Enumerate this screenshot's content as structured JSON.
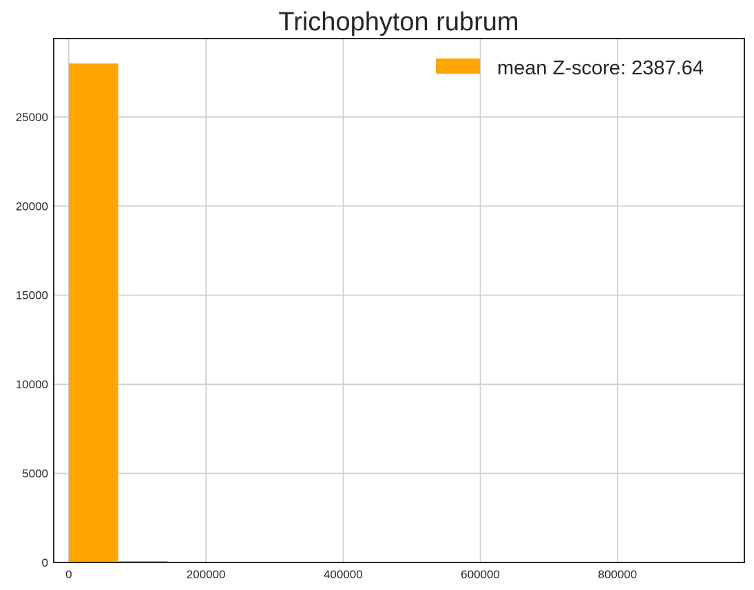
{
  "chart_data": {
    "type": "bar",
    "title": "Trichophyton rubrum",
    "xlabel": "",
    "ylabel": "",
    "xlim": [
      -22000,
      985000
    ],
    "ylim": [
      0,
      29400
    ],
    "grid": true,
    "legend_position": "top-right",
    "x_ticks": [
      0,
      200000,
      400000,
      600000,
      800000
    ],
    "y_ticks": [
      0,
      5000,
      10000,
      15000,
      20000,
      25000
    ],
    "bins": [
      {
        "x0": 0,
        "x1": 72000,
        "count": 28000
      },
      {
        "x0": 72000,
        "x1": 144000,
        "count": 80
      },
      {
        "x0": 144000,
        "x1": 216000,
        "count": 10
      },
      {
        "x0": 216000,
        "x1": 288000,
        "count": 4
      },
      {
        "x0": 288000,
        "x1": 360000,
        "count": 3
      },
      {
        "x0": 360000,
        "x1": 432000,
        "count": 3
      },
      {
        "x0": 432000,
        "x1": 504000,
        "count": 1
      },
      {
        "x0": 504000,
        "x1": 576000,
        "count": 1
      },
      {
        "x0": 576000,
        "x1": 648000,
        "count": 1
      },
      {
        "x0": 648000,
        "x1": 720000,
        "count": 1
      },
      {
        "x0": 720000,
        "x1": 792000,
        "count": 1
      },
      {
        "x0": 792000,
        "x1": 864000,
        "count": 1
      },
      {
        "x0": 864000,
        "x1": 936000,
        "count": 3
      }
    ],
    "series": [
      {
        "name": "mean Z-score: 2387.64",
        "color": "#ffa500"
      }
    ]
  }
}
